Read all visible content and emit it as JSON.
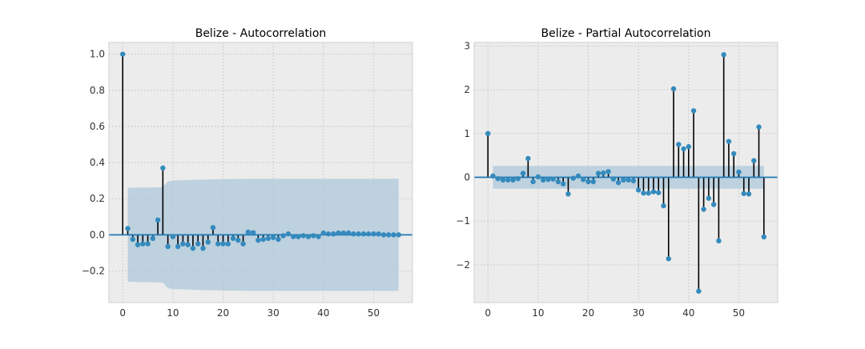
{
  "chart_data": [
    {
      "type": "stem",
      "title": "Belize - Autocorrelation",
      "xlabel": "",
      "ylabel": "",
      "xlim": [
        -2.75,
        57.75
      ],
      "ylim": [
        -0.375,
        1.065
      ],
      "xticks": [
        0,
        10,
        20,
        30,
        40,
        50
      ],
      "yticks": [
        -0.2,
        0.0,
        0.2,
        0.4,
        0.6,
        0.8,
        1.0
      ],
      "ytick_labels": [
        "−0.2",
        "0.0",
        "0.2",
        "0.4",
        "0.6",
        "0.8",
        "1.0"
      ],
      "grid": true,
      "colors": {
        "stem": "#000000",
        "marker": "#348abd",
        "band": "#aec8db",
        "zero_line": "#1f77b4",
        "plot_bg": "#ececec"
      },
      "x": [
        0,
        1,
        2,
        3,
        4,
        5,
        6,
        7,
        8,
        9,
        10,
        11,
        12,
        13,
        14,
        15,
        16,
        17,
        18,
        19,
        20,
        21,
        22,
        23,
        24,
        25,
        26,
        27,
        28,
        29,
        30,
        31,
        32,
        33,
        34,
        35,
        36,
        37,
        38,
        39,
        40,
        41,
        42,
        43,
        44,
        45,
        46,
        47,
        48,
        49,
        50,
        51,
        52,
        53,
        54,
        55
      ],
      "values": [
        1.0,
        0.035,
        -0.025,
        -0.055,
        -0.05,
        -0.05,
        -0.02,
        0.082,
        0.37,
        -0.065,
        -0.01,
        -0.065,
        -0.05,
        -0.055,
        -0.075,
        -0.05,
        -0.075,
        -0.04,
        0.04,
        -0.05,
        -0.05,
        -0.05,
        -0.02,
        -0.03,
        -0.05,
        0.015,
        0.012,
        -0.03,
        -0.025,
        -0.02,
        -0.015,
        -0.025,
        -0.005,
        0.005,
        -0.01,
        -0.01,
        -0.005,
        -0.01,
        -0.005,
        -0.01,
        0.01,
        0.005,
        0.005,
        0.01,
        0.01,
        0.01,
        0.005,
        0.005,
        0.005,
        0.005,
        0.005,
        0.005,
        0.0,
        0.0,
        0.0,
        0.0
      ],
      "confidence_band": {
        "x": [
          1,
          2,
          3,
          4,
          5,
          6,
          7,
          8,
          9,
          10,
          15,
          20,
          25,
          30,
          35,
          40,
          45,
          50,
          55
        ],
        "upper": [
          0.26,
          0.26,
          0.262,
          0.262,
          0.262,
          0.262,
          0.263,
          0.265,
          0.295,
          0.3,
          0.305,
          0.308,
          0.31,
          0.31,
          0.31,
          0.31,
          0.31,
          0.31,
          0.31
        ]
      }
    },
    {
      "type": "stem",
      "title": "Belize - Partial Autocorrelation",
      "xlabel": "",
      "ylabel": "",
      "xlim": [
        -2.75,
        57.75
      ],
      "ylim": [
        -2.86,
        3.08
      ],
      "xticks": [
        0,
        10,
        20,
        30,
        40,
        50
      ],
      "yticks": [
        -2,
        -1,
        0,
        1,
        2,
        3
      ],
      "ytick_labels": [
        "−2",
        "−1",
        "0",
        "1",
        "2",
        "3"
      ],
      "grid": true,
      "colors": {
        "stem": "#000000",
        "marker": "#348abd",
        "band": "#aec8db",
        "zero_line": "#1f77b4",
        "plot_bg": "#ececec"
      },
      "x": [
        0,
        1,
        2,
        3,
        4,
        5,
        6,
        7,
        8,
        9,
        10,
        11,
        12,
        13,
        14,
        15,
        16,
        17,
        18,
        19,
        20,
        21,
        22,
        23,
        24,
        25,
        26,
        27,
        28,
        29,
        30,
        31,
        32,
        33,
        34,
        35,
        36,
        37,
        38,
        39,
        40,
        41,
        42,
        43,
        44,
        45,
        46,
        47,
        48,
        49,
        50,
        51,
        52,
        53,
        54,
        55
      ],
      "values": [
        1.0,
        0.03,
        -0.03,
        -0.06,
        -0.06,
        -0.06,
        -0.03,
        0.09,
        0.43,
        -0.1,
        0.01,
        -0.06,
        -0.05,
        -0.04,
        -0.1,
        -0.15,
        -0.38,
        -0.02,
        0.03,
        -0.05,
        -0.1,
        -0.1,
        0.09,
        0.1,
        0.13,
        -0.04,
        -0.12,
        -0.06,
        -0.06,
        -0.08,
        -0.29,
        -0.36,
        -0.36,
        -0.33,
        -0.35,
        -0.65,
        -1.86,
        2.02,
        0.75,
        0.65,
        0.7,
        1.52,
        -2.6,
        -0.73,
        -0.48,
        -0.62,
        -1.45,
        2.8,
        0.82,
        0.54,
        0.12,
        -0.37,
        -0.38,
        0.38,
        1.15,
        -1.36
      ],
      "confidence_band": {
        "x": [
          1,
          55
        ],
        "upper": [
          0.26,
          0.26
        ]
      }
    }
  ]
}
